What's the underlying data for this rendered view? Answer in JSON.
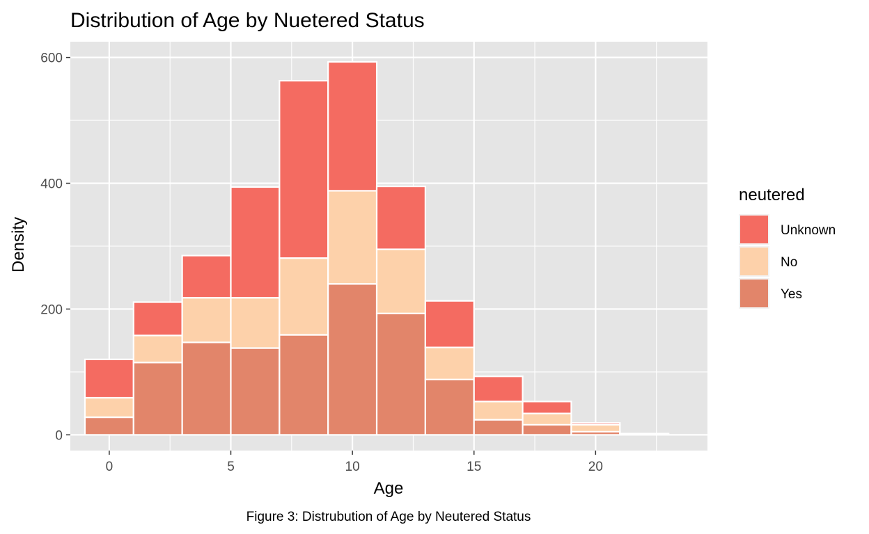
{
  "chart_data": {
    "type": "bar",
    "stacked": true,
    "title": "Distribution of Age by Nuetered Status",
    "xlabel": "Age",
    "ylabel": "Density",
    "xlim": [
      -1.6,
      24.6
    ],
    "ylim": [
      -25,
      625
    ],
    "x_ticks": [
      0,
      5,
      10,
      15,
      20
    ],
    "y_ticks": [
      0,
      200,
      400,
      600
    ],
    "bins": [
      {
        "x0": -1,
        "x1": 1
      },
      {
        "x0": 1,
        "x1": 3
      },
      {
        "x0": 3,
        "x1": 5
      },
      {
        "x0": 5,
        "x1": 7
      },
      {
        "x0": 7,
        "x1": 9
      },
      {
        "x0": 9,
        "x1": 11
      },
      {
        "x0": 11,
        "x1": 13
      },
      {
        "x0": 13,
        "x1": 15
      },
      {
        "x0": 15,
        "x1": 17
      },
      {
        "x0": 17,
        "x1": 19
      },
      {
        "x0": 19,
        "x1": 21
      },
      {
        "x0": 21,
        "x1": 23
      }
    ],
    "series": [
      {
        "name": "Yes",
        "color": "#E2856A",
        "values": [
          28,
          115,
          147,
          138,
          159,
          240,
          193,
          88,
          24,
          16,
          5,
          1
        ]
      },
      {
        "name": "No",
        "color": "#FDD1AA",
        "values": [
          31,
          43,
          71,
          80,
          122,
          148,
          102,
          51,
          29,
          18,
          11,
          1
        ]
      },
      {
        "name": "Unknown",
        "color": "#F46B61",
        "values": [
          61,
          53,
          67,
          176,
          282,
          205,
          100,
          74,
          40,
          19,
          3,
          0
        ]
      }
    ],
    "legend": {
      "title": "neutered",
      "position": "right",
      "entries": [
        {
          "label": "Unknown",
          "color": "#F46B61"
        },
        {
          "label": "No",
          "color": "#FDD1AA"
        },
        {
          "label": "Yes",
          "color": "#E2856A"
        }
      ]
    },
    "panel_background": "#E5E5E5",
    "grid": true,
    "caption": "Figure 3: Distrubution of Age by Neutered Status"
  }
}
